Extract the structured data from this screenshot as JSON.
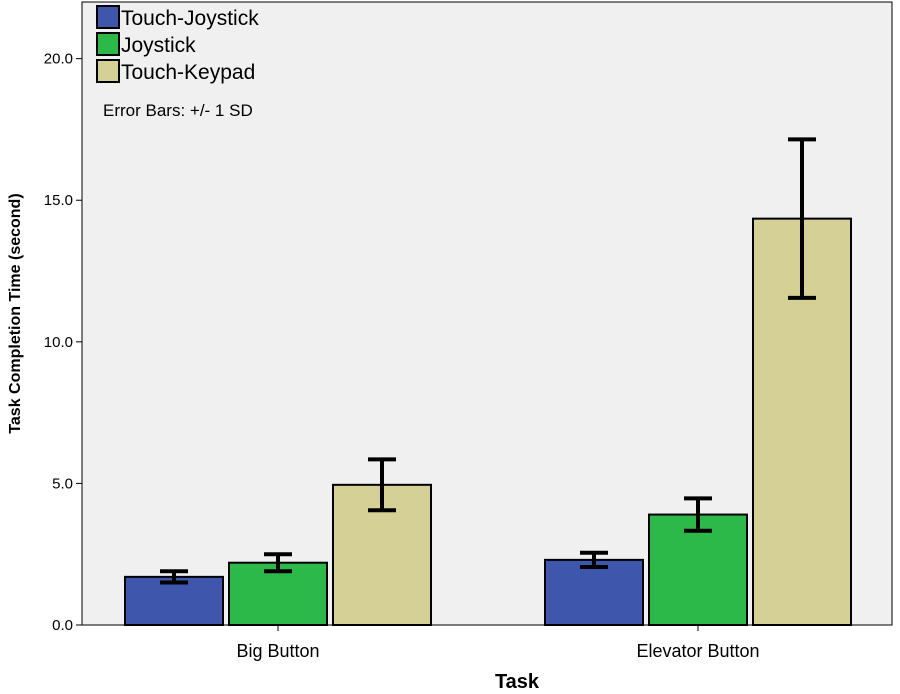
{
  "chart_data": {
    "type": "bar",
    "title": "",
    "xlabel": "Task",
    "ylabel": "Task Completion Time (second)",
    "categories": [
      "Big Button",
      "Elevator Button"
    ],
    "series": [
      {
        "name": "Touch-Joystick",
        "color": "#3f56ad",
        "values": [
          1.7,
          2.3
        ],
        "error": [
          0.2,
          0.25
        ]
      },
      {
        "name": "Joystick",
        "color": "#2db84a",
        "values": [
          2.2,
          3.9
        ],
        "error": [
          0.3,
          0.57
        ]
      },
      {
        "name": "Touch-Keypad",
        "color": "#d5d096",
        "values": [
          4.95,
          14.35
        ],
        "error": [
          0.9,
          2.8
        ]
      }
    ],
    "ylim": [
      0,
      22
    ],
    "yticks": [
      0.0,
      5.0,
      10.0,
      15.0,
      20.0
    ],
    "ytick_labels": [
      "0.0",
      "5.0",
      "10.0",
      "15.0",
      "20.0"
    ],
    "note": "Error Bars: +/- 1 SD",
    "legend_position": "top-left",
    "grid": false,
    "background": "#f0f0f0"
  }
}
